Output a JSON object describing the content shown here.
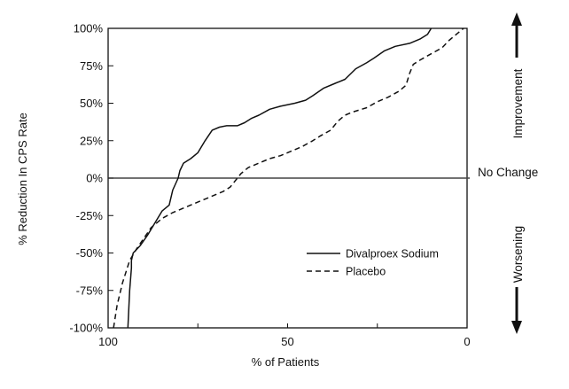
{
  "chart_data": {
    "type": "line",
    "title": "",
    "xlabel": "% of Patients",
    "ylabel": "% Reduction In CPS Rate",
    "xlim": [
      100,
      0
    ],
    "ylim": [
      -100,
      100
    ],
    "x_ticks": [
      100,
      50,
      0
    ],
    "x_tick_labels": [
      "100",
      "50",
      "0"
    ],
    "y_ticks": [
      100,
      75,
      50,
      25,
      0,
      -25,
      -50,
      -75,
      -100
    ],
    "y_tick_labels": [
      "100%",
      "75%",
      "50%",
      "25%",
      "0%",
      "-25%",
      "-50%",
      "-75%",
      "-100%"
    ],
    "grid": false,
    "reference_line": {
      "y": 0,
      "label": "No Change"
    },
    "legend": {
      "placement": "lower-right"
    },
    "side_labels": {
      "upper": "Improvement",
      "lower": "Worsening"
    },
    "series": [
      {
        "name": "Divalproex Sodium",
        "style": "solid",
        "color": "#111111",
        "points": [
          [
            94.5,
            -100
          ],
          [
            94,
            -75
          ],
          [
            93.5,
            -60
          ],
          [
            93.5,
            -55
          ],
          [
            93,
            -50
          ],
          [
            91,
            -45
          ],
          [
            89,
            -38
          ],
          [
            87,
            -30
          ],
          [
            85,
            -22
          ],
          [
            83,
            -18
          ],
          [
            82,
            -8
          ],
          [
            80.5,
            0
          ],
          [
            80,
            5
          ],
          [
            79,
            10
          ],
          [
            77,
            13
          ],
          [
            75,
            17
          ],
          [
            73,
            25
          ],
          [
            71,
            32
          ],
          [
            69,
            34
          ],
          [
            67,
            35
          ],
          [
            64,
            35
          ],
          [
            62,
            37
          ],
          [
            60,
            40
          ],
          [
            58,
            42
          ],
          [
            55,
            46
          ],
          [
            52,
            48
          ],
          [
            48,
            50
          ],
          [
            45,
            52
          ],
          [
            43,
            55
          ],
          [
            40,
            60
          ],
          [
            37,
            63
          ],
          [
            34,
            66
          ],
          [
            31,
            73
          ],
          [
            28,
            77
          ],
          [
            26,
            80
          ],
          [
            23,
            85
          ],
          [
            20,
            88
          ],
          [
            16,
            90
          ],
          [
            13,
            93
          ],
          [
            11,
            96
          ],
          [
            10,
            100
          ]
        ]
      },
      {
        "name": "Placebo",
        "style": "dashed",
        "color": "#111111",
        "points": [
          [
            98.5,
            -100
          ],
          [
            97.5,
            -85
          ],
          [
            96,
            -70
          ],
          [
            94,
            -55
          ],
          [
            92,
            -47
          ],
          [
            90,
            -40
          ],
          [
            88,
            -33
          ],
          [
            85,
            -27
          ],
          [
            82,
            -23
          ],
          [
            79,
            -20
          ],
          [
            76,
            -17
          ],
          [
            73,
            -14
          ],
          [
            70,
            -11
          ],
          [
            68,
            -9
          ],
          [
            66,
            -6
          ],
          [
            65,
            -3
          ],
          [
            64,
            0
          ],
          [
            63,
            3
          ],
          [
            61,
            7
          ],
          [
            58,
            10
          ],
          [
            55,
            13
          ],
          [
            52,
            15
          ],
          [
            49,
            18
          ],
          [
            46,
            21
          ],
          [
            43,
            25
          ],
          [
            41,
            28
          ],
          [
            38,
            32
          ],
          [
            36,
            38
          ],
          [
            34,
            42
          ],
          [
            32,
            44
          ],
          [
            28,
            47
          ],
          [
            25,
            51
          ],
          [
            22,
            54
          ],
          [
            19,
            58
          ],
          [
            17,
            62
          ],
          [
            16,
            70
          ],
          [
            15,
            76
          ],
          [
            13,
            79
          ],
          [
            10,
            83
          ],
          [
            7,
            87
          ],
          [
            5,
            92
          ],
          [
            3,
            96
          ],
          [
            1,
            100
          ]
        ]
      }
    ]
  }
}
